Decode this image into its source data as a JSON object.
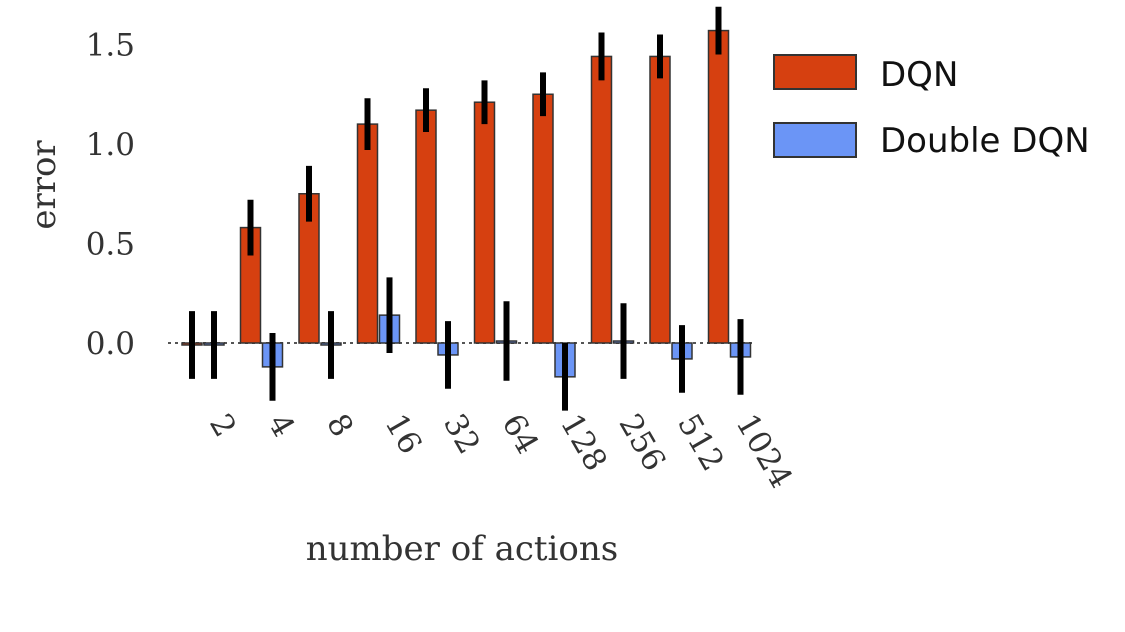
{
  "chart_data": {
    "type": "bar",
    "categories": [
      "2",
      "4",
      "8",
      "16",
      "32",
      "64",
      "128",
      "256",
      "512",
      "1024"
    ],
    "series": [
      {
        "name": "DQN",
        "color": "#d64010",
        "values": [
          -0.01,
          0.58,
          0.75,
          1.1,
          1.17,
          1.21,
          1.25,
          1.44,
          1.44,
          1.57
        ],
        "err": [
          0.17,
          0.14,
          0.14,
          0.13,
          0.11,
          0.11,
          0.11,
          0.12,
          0.11,
          0.12
        ]
      },
      {
        "name": "Double DQN",
        "color": "#6b95f6",
        "values": [
          -0.01,
          -0.12,
          -0.01,
          0.14,
          -0.06,
          0.01,
          -0.17,
          0.01,
          -0.08,
          -0.07
        ],
        "err": [
          0.17,
          0.17,
          0.17,
          0.19,
          0.17,
          0.2,
          0.17,
          0.19,
          0.17,
          0.19
        ]
      }
    ],
    "xlabel": "number of actions",
    "ylabel": "error",
    "yticks": [
      "0.0",
      "0.5",
      "1.0",
      "1.5"
    ],
    "ylim": [
      -0.2,
      1.7
    ],
    "legend_position": "right",
    "zero_line": "dotted"
  }
}
